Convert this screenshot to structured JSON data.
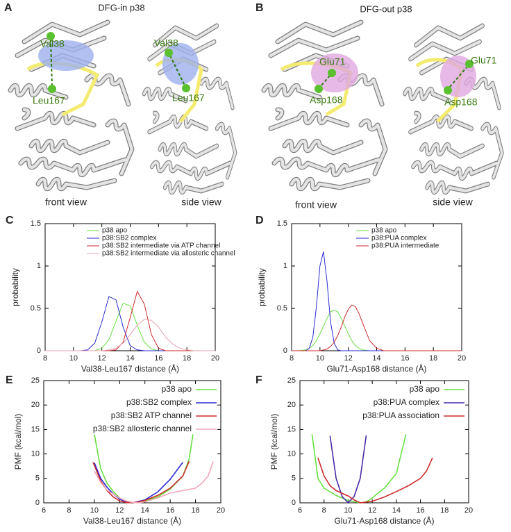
{
  "figure": {
    "A": {
      "panel": "A",
      "title": "DFG-in p38",
      "front": {
        "residues": [
          "Val38",
          "Leu167"
        ],
        "caption": "front view"
      },
      "side": {
        "residues": [
          "Val38",
          "Leu167"
        ],
        "caption": "side view"
      }
    },
    "B": {
      "panel": "B",
      "title": "DFG-out p38",
      "front": {
        "residues": [
          "Glu71",
          "Asp168"
        ],
        "caption": "front view"
      },
      "side": {
        "residues": [
          "Glu71",
          "Asp168"
        ],
        "caption": "side view"
      }
    }
  },
  "chart_data": [
    {
      "panel": "C",
      "type": "line",
      "x": [
        8,
        8.5,
        9,
        9.5,
        10,
        10.5,
        11,
        11.5,
        12,
        12.5,
        13,
        13.5,
        14,
        14.5,
        15,
        15.5,
        16,
        16.5,
        17,
        17.5,
        18,
        18.5,
        19,
        19.5,
        20
      ],
      "series": [
        {
          "name": "p38 apo",
          "color": "#66e040",
          "values": [
            0,
            0,
            0,
            0,
            0,
            0,
            0,
            0,
            0.03,
            0.13,
            0.35,
            0.56,
            0.53,
            0.3,
            0.1,
            0.02,
            0,
            0,
            0,
            0,
            0,
            0,
            0,
            0,
            0
          ]
        },
        {
          "name": "p38:SB2 complex",
          "color": "#2a2ad8",
          "values": [
            0,
            0,
            0,
            0,
            0,
            0,
            0.01,
            0.09,
            0.34,
            0.64,
            0.6,
            0.28,
            0.06,
            0.01,
            0,
            0,
            0,
            0,
            0,
            0,
            0,
            0,
            0,
            0,
            0
          ]
        },
        {
          "name": "p38:SB2 intermediate via ATP channel",
          "color": "#cc2a2a",
          "values": [
            0,
            0,
            0,
            0,
            0,
            0,
            0,
            0,
            0,
            0,
            0.01,
            0.1,
            0.39,
            0.7,
            0.55,
            0.19,
            0.03,
            0,
            0,
            0,
            0,
            0,
            0,
            0,
            0
          ]
        },
        {
          "name": "p38:SB2 intermediate via allosteric channel",
          "color": "#e8a0b0",
          "values": [
            0,
            0,
            0,
            0,
            0,
            0,
            0,
            0,
            0,
            0.01,
            0.03,
            0.09,
            0.19,
            0.3,
            0.37,
            0.36,
            0.28,
            0.16,
            0.08,
            0.03,
            0.01,
            0,
            0,
            0,
            0
          ]
        }
      ],
      "xlim": [
        8,
        20
      ],
      "xticks": [
        8,
        10,
        12,
        14,
        16,
        18,
        20
      ],
      "ylim": [
        0,
        1.5
      ],
      "yticks": [
        0,
        0.5,
        1,
        1.5
      ],
      "xlabel": "Val38-Leu167 distance (Å)",
      "ylabel": "probability",
      "legend": "upper right"
    },
    {
      "panel": "D",
      "type": "line",
      "x": [
        8,
        8.5,
        9,
        9.25,
        9.5,
        9.75,
        10,
        10.25,
        10.5,
        10.75,
        11,
        11.25,
        11.5,
        11.75,
        12,
        12.25,
        12.5,
        12.75,
        13,
        13.5,
        14,
        14.5,
        15,
        16,
        20
      ],
      "series": [
        {
          "name": "p38 apo",
          "color": "#66e040",
          "values": [
            0,
            0,
            0.01,
            0.03,
            0.06,
            0.12,
            0.2,
            0.29,
            0.38,
            0.46,
            0.48,
            0.46,
            0.38,
            0.29,
            0.2,
            0.12,
            0.06,
            0.03,
            0.01,
            0,
            0,
            0,
            0,
            0,
            0
          ]
        },
        {
          "name": "p38:PUA complex",
          "color": "#2a2ad8",
          "values": [
            0,
            0,
            0,
            0.03,
            0.16,
            0.52,
            1.0,
            1.17,
            0.82,
            0.34,
            0.09,
            0.01,
            0,
            0,
            0,
            0,
            0,
            0,
            0,
            0,
            0,
            0,
            0,
            0,
            0
          ]
        },
        {
          "name": "p38:PUA intermediate",
          "color": "#cc2a2a",
          "values": [
            0,
            0,
            0,
            0,
            0,
            0,
            0,
            0.01,
            0.02,
            0.05,
            0.1,
            0.18,
            0.28,
            0.4,
            0.49,
            0.54,
            0.52,
            0.44,
            0.33,
            0.12,
            0.03,
            0,
            0,
            0,
            0
          ]
        }
      ],
      "xlim": [
        8,
        20
      ],
      "xticks": [
        8,
        10,
        12,
        14,
        16,
        18,
        20
      ],
      "ylim": [
        0,
        1.5
      ],
      "yticks": [
        0,
        0.5,
        1,
        1.5
      ],
      "xlabel": "Glu71-Asp168 distance (Å)",
      "ylabel": "probability",
      "legend": "upper right"
    },
    {
      "panel": "E",
      "type": "line",
      "series": [
        {
          "name": "p38 apo",
          "color": "#66e040",
          "x": [
            10,
            10.5,
            11,
            11.5,
            12,
            12.5,
            13,
            13.5,
            14,
            15,
            16,
            17,
            17.5,
            17.8
          ],
          "values": [
            14,
            7,
            4,
            2.3,
            1.0,
            0.3,
            0,
            0.1,
            0.4,
            1.2,
            2.8,
            5.5,
            9,
            14
          ]
        },
        {
          "name": "p38:SB2 complex",
          "color": "#2a2ad8",
          "x": [
            10,
            10.5,
            11,
            11.5,
            12,
            12.5,
            13,
            14,
            15,
            16,
            17
          ],
          "values": [
            8.2,
            5,
            3.2,
            1.8,
            0.8,
            0.2,
            0,
            0.6,
            2.2,
            4.8,
            8.3
          ]
        },
        {
          "name": "p38:SB2 ATP channel",
          "color": "#cc2a2a",
          "x": [
            9.9,
            10.5,
            11,
            11.5,
            12,
            12.5,
            13,
            13.5,
            14,
            15,
            16,
            17,
            17.5
          ],
          "values": [
            8.3,
            4.5,
            2.5,
            1.2,
            0.4,
            0.1,
            0,
            0.2,
            0.5,
            1.5,
            3,
            5.5,
            8.5
          ]
        },
        {
          "name": "p38:SB2 allosteric channel",
          "color": "#f0a8b8",
          "x": [
            10,
            10.5,
            11,
            12,
            12.5,
            13,
            13.5,
            14,
            15,
            16,
            17,
            18,
            18.5,
            19,
            19.4
          ],
          "values": [
            6.5,
            4.2,
            2.6,
            1,
            0.4,
            0.1,
            0,
            0.2,
            1,
            2,
            2.5,
            3,
            4,
            5.5,
            8.5
          ]
        }
      ],
      "xlim": [
        6,
        20
      ],
      "xticks": [
        6,
        8,
        10,
        12,
        14,
        16,
        18,
        20
      ],
      "ylim": [
        0,
        25
      ],
      "yticks": [
        0,
        5,
        10,
        15,
        20,
        25
      ],
      "xlabel": "Val38-Leu167 distance (Å)",
      "ylabel": "PMF (kcal/mol)",
      "legend": "upper right"
    },
    {
      "panel": "F",
      "type": "line",
      "series": [
        {
          "name": "p38 apo",
          "color": "#66e040",
          "x": [
            7,
            7.5,
            8,
            9,
            10,
            11,
            11.5,
            12,
            13,
            14,
            14.8
          ],
          "values": [
            14,
            5,
            3,
            1.5,
            0.5,
            0,
            0.2,
            1,
            3,
            6,
            14
          ]
        },
        {
          "name": "p38:PUA complex",
          "color": "#4a2aa8",
          "x": [
            8.5,
            9,
            9.5,
            10,
            10.5,
            11,
            11.5
          ],
          "values": [
            13.7,
            5,
            1.3,
            0,
            1.3,
            5,
            13.8
          ]
        },
        {
          "name": "p38:PUA association",
          "color": "#cc2a2a",
          "x": [
            7.5,
            8,
            8.5,
            9,
            10,
            10.5,
            11,
            12,
            13,
            14,
            15,
            16,
            16.5,
            17
          ],
          "values": [
            9.2,
            5.5,
            3.5,
            2.5,
            1.4,
            0.6,
            0,
            0.3,
            1.2,
            2.3,
            3.5,
            5,
            6.5,
            9.2
          ]
        }
      ],
      "xlim": [
        6,
        20
      ],
      "xticks": [
        6,
        8,
        10,
        12,
        14,
        16,
        18,
        20
      ],
      "ylim": [
        0,
        25
      ],
      "yticks": [
        0,
        5,
        10,
        15,
        20,
        25
      ],
      "xlabel": "Glu71-Asp168 distance (Å)",
      "ylabel": "PMF (kcal/mol)",
      "legend": "upper right"
    }
  ]
}
